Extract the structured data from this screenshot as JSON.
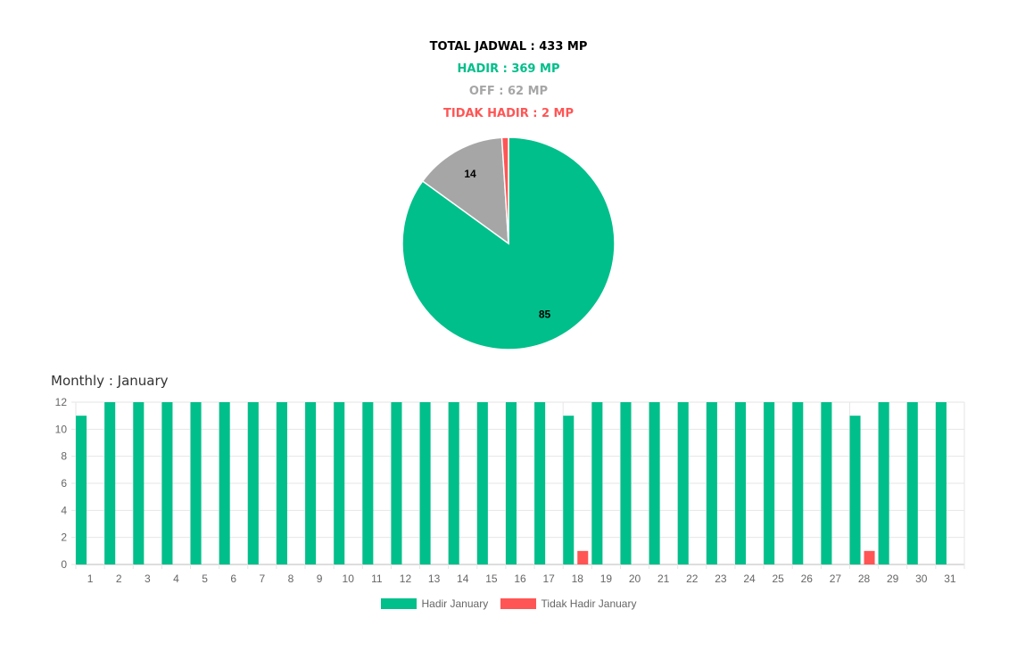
{
  "summary": {
    "total": "TOTAL JADWAL : 433 MP",
    "hadir": "HADIR : 369 MP",
    "off": "OFF : 62 MP",
    "tidak_hadir": "TIDAK HADIR : 2 MP"
  },
  "colors": {
    "total": "#000000",
    "hadir": "#00bf8a",
    "off": "#a6a6a6",
    "tidak_hadir": "#ff5555",
    "grid": "#e6e6e6",
    "tick": "#666666"
  },
  "monthly_title": "Monthly : January",
  "chart_data": [
    {
      "type": "pie",
      "slices": [
        {
          "value": 85,
          "label": "85",
          "color": "#00bf8a"
        },
        {
          "value": 14,
          "label": "14",
          "color": "#a6a6a6"
        },
        {
          "value": 1,
          "label": "",
          "color": "#ff5555"
        }
      ]
    },
    {
      "type": "bar",
      "categories": [
        "1",
        "2",
        "3",
        "4",
        "5",
        "6",
        "7",
        "8",
        "9",
        "10",
        "11",
        "12",
        "13",
        "14",
        "15",
        "16",
        "17",
        "18",
        "19",
        "20",
        "21",
        "22",
        "23",
        "24",
        "25",
        "26",
        "27",
        "28",
        "29",
        "30",
        "31"
      ],
      "series": [
        {
          "name": "Hadir January",
          "color": "#00bf8a",
          "values": [
            11,
            12,
            12,
            12,
            12,
            12,
            12,
            12,
            12,
            12,
            12,
            12,
            12,
            12,
            12,
            12,
            12,
            11,
            12,
            12,
            12,
            12,
            12,
            12,
            12,
            12,
            12,
            11,
            12,
            12,
            12
          ]
        },
        {
          "name": "Tidak Hadir January",
          "color": "#ff5555",
          "values": [
            0,
            0,
            0,
            0,
            0,
            0,
            0,
            0,
            0,
            0,
            0,
            0,
            0,
            0,
            0,
            0,
            0,
            1,
            0,
            0,
            0,
            0,
            0,
            0,
            0,
            0,
            0,
            1,
            0,
            0,
            0
          ]
        }
      ],
      "yticks": [
        "0",
        "2",
        "4",
        "6",
        "8",
        "10",
        "12"
      ],
      "ylim": [
        0,
        12
      ],
      "legend_position": "bottom"
    }
  ]
}
